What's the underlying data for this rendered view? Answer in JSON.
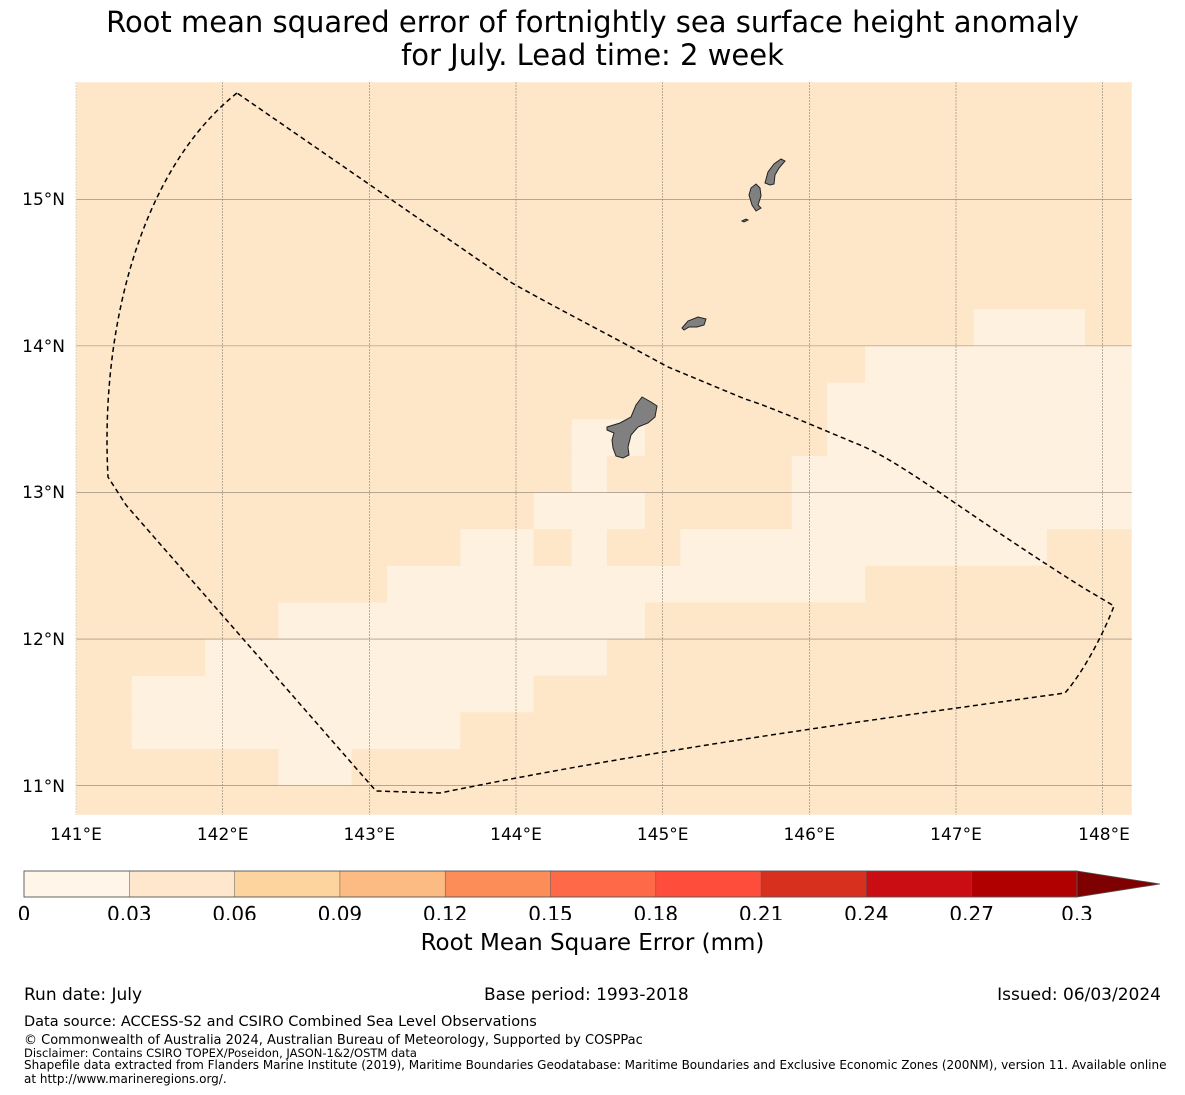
{
  "title": {
    "line1": "Root mean squared error of fortnightly sea surface height anomaly",
    "line2": "for July. Lead time: 2 week"
  },
  "map": {
    "lon_range": [
      141.0,
      148.2
    ],
    "lat_range": [
      10.8,
      15.8
    ],
    "lon_ticks": [
      "141°E",
      "142°E",
      "143°E",
      "144°E",
      "145°E",
      "146°E",
      "147°E",
      "148°E"
    ],
    "lat_ticks": [
      "15°N",
      "14°N",
      "13°N",
      "12°N",
      "11°N"
    ],
    "background_color": "#fee6c8",
    "low_value_color": "#fff1df",
    "land_color": "#808080",
    "eez_boundary": "dashed black line",
    "low_error_cells": [
      [
        144.88,
        13.25,
        144.38,
        13.5
      ],
      [
        144.38,
        13.0,
        144.62,
        13.25
      ],
      [
        144.12,
        12.75,
        144.88,
        13.0
      ],
      [
        143.62,
        12.5,
        144.12,
        12.75
      ],
      [
        144.38,
        12.5,
        144.62,
        12.75
      ],
      [
        143.12,
        12.25,
        146.38,
        12.5
      ],
      [
        142.38,
        12.0,
        144.88,
        12.25
      ],
      [
        141.88,
        11.75,
        144.62,
        12.0
      ],
      [
        141.38,
        11.5,
        144.12,
        11.75
      ],
      [
        141.38,
        11.25,
        143.62,
        11.5
      ],
      [
        142.38,
        11.0,
        142.88,
        11.25
      ],
      [
        144.38,
        12.5,
        144.62,
        12.75
      ],
      [
        145.12,
        12.5,
        147.62,
        12.75
      ],
      [
        145.88,
        12.75,
        148.2,
        13.25
      ],
      [
        146.12,
        13.25,
        148.2,
        13.75
      ],
      [
        146.38,
        13.75,
        148.2,
        14.0
      ],
      [
        147.12,
        14.0,
        147.88,
        14.25
      ]
    ]
  },
  "colorbar": {
    "ticks": [
      "0",
      "0.03",
      "0.06",
      "0.09",
      "0.12",
      "0.15",
      "0.18",
      "0.21",
      "0.24",
      "0.27",
      "0.3"
    ],
    "colors": [
      "#fff5e8",
      "#fee7cc",
      "#fdd49e",
      "#fdbb84",
      "#fc8d59",
      "#fe6a48",
      "#fe4e3b",
      "#d7301f",
      "#c90d12",
      "#b00000",
      "#7f0000"
    ],
    "label": "Root Mean Square Error (mm)",
    "extend": "max"
  },
  "footer": {
    "run_date": "Run date: July",
    "base_period": "Base period: 1993-2018",
    "issued": "Issued: 06/03/2024",
    "data_source": "Data source: ACCESS-S2 and CSIRO Combined Sea Level Observations",
    "copyright": "© Commonwealth of Australia 2024, Australian Bureau of Meteorology, Supported by COSPPac",
    "disclaimer": "Disclaimer: Contains CSIRO TOPEX/Poseidon, JASON-1&2/OSTM data",
    "shapefile": "Shapefile data extracted from Flanders Marine Institute (2019), Maritime Boundaries Geodatabase: Maritime Boundaries and Exclusive Economic Zones (200NM), version 11. Available online at http://www.marineregions.org/."
  }
}
